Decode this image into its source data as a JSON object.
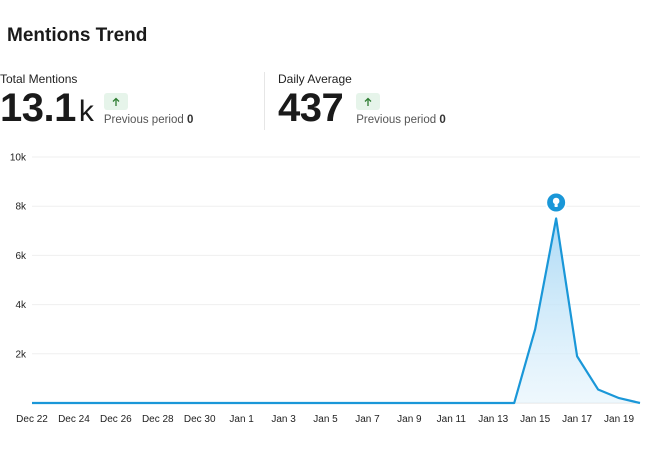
{
  "header": {
    "title": "Mentions Trend"
  },
  "kpis": [
    {
      "label": "Total Mentions",
      "value": "13.1",
      "unit": "k",
      "prev_label": "Previous period",
      "prev_value": "0",
      "trend_icon": "arrow-up-icon"
    },
    {
      "label": "Daily Average",
      "value": "437",
      "unit": "",
      "prev_label": "Previous period",
      "prev_value": "0",
      "trend_icon": "arrow-up-icon"
    }
  ],
  "colors": {
    "line": "#1a97d8",
    "area": "#cfe9f9",
    "badge_bg": "#e6f4ea",
    "badge_arrow": "#2e7d32",
    "marker": "#1a97d8"
  },
  "chart_data": {
    "type": "area",
    "title": "",
    "xlabel": "",
    "ylabel": "",
    "ylim": [
      0,
      10000
    ],
    "yticks": [
      2000,
      4000,
      6000,
      8000,
      10000
    ],
    "ytick_labels": [
      "2k",
      "4k",
      "6k",
      "8k",
      "10k"
    ],
    "xtick_labels": [
      "Dec 22",
      "Dec 24",
      "Dec 26",
      "Dec 28",
      "Dec 30",
      "Jan 1",
      "Jan 3",
      "Jan 5",
      "Jan 7",
      "Jan 9",
      "Jan 11",
      "Jan 13",
      "Jan 15",
      "Jan 17",
      "Jan 19"
    ],
    "grid": true,
    "x": [
      "Dec 22",
      "Dec 23",
      "Dec 24",
      "Dec 25",
      "Dec 26",
      "Dec 27",
      "Dec 28",
      "Dec 29",
      "Dec 30",
      "Dec 31",
      "Jan 1",
      "Jan 2",
      "Jan 3",
      "Jan 4",
      "Jan 5",
      "Jan 6",
      "Jan 7",
      "Jan 8",
      "Jan 9",
      "Jan 10",
      "Jan 11",
      "Jan 12",
      "Jan 13",
      "Jan 14",
      "Jan 15",
      "Jan 16",
      "Jan 17",
      "Jan 18",
      "Jan 19",
      "Jan 20"
    ],
    "values": [
      0,
      0,
      0,
      0,
      0,
      0,
      0,
      0,
      0,
      0,
      0,
      0,
      0,
      0,
      0,
      0,
      0,
      0,
      0,
      0,
      0,
      0,
      0,
      0,
      3000,
      7500,
      1900,
      550,
      200,
      0
    ],
    "annotation": {
      "at": "Jan 16",
      "icon": "lightbulb-icon"
    }
  }
}
